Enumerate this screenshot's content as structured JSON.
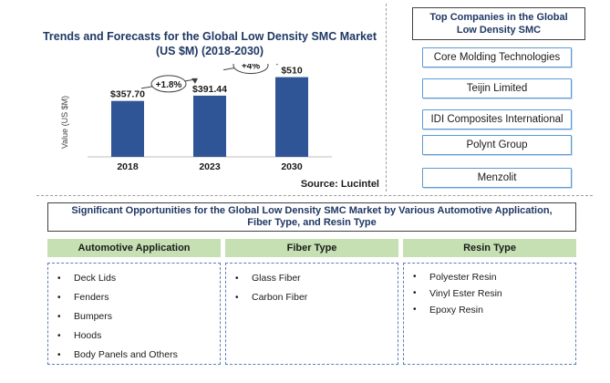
{
  "chart_data": {
    "type": "bar",
    "title": "Trends and Forecasts for the Global Low Density SMC Market (US $M) (2018-2030)",
    "ylabel": "Value (US $M)",
    "categories": [
      "2018",
      "2023",
      "2030"
    ],
    "values": [
      357.7,
      391.44,
      510
    ],
    "value_labels": [
      "$357.70",
      "$391.44",
      "$510"
    ],
    "growth_labels": [
      "+1.8%",
      "+4%"
    ],
    "bar_color": "#2f5597",
    "ylim": [
      0,
      560
    ],
    "grid": false,
    "source": "Source: Lucintel"
  },
  "companies": {
    "title": "Top Companies in the Global Low Density SMC",
    "items": [
      "Core Molding Technologies",
      "Teijin Limited",
      "IDI Composites International",
      "Polynt Group",
      "Menzolit"
    ]
  },
  "opportunities": {
    "title": "Significant Opportunities for the Global Low Density SMC Market by Various Automotive Application, Fiber Type, and Resin Type",
    "columns": [
      {
        "header": "Automotive Application",
        "items": [
          "Deck Lids",
          "Fenders",
          "Bumpers",
          "Hoods",
          "Body Panels and Others"
        ]
      },
      {
        "header": "Fiber Type",
        "items": [
          "Glass Fiber",
          "Carbon Fiber"
        ]
      },
      {
        "header": "Resin Type",
        "items": [
          "Polyester Resin",
          "Vinyl Ester Resin",
          "Epoxy Resin"
        ]
      }
    ]
  },
  "colors": {
    "accent": "#2f5597",
    "header_green": "#c6e0b4",
    "box_border": "#5b9bd5"
  }
}
